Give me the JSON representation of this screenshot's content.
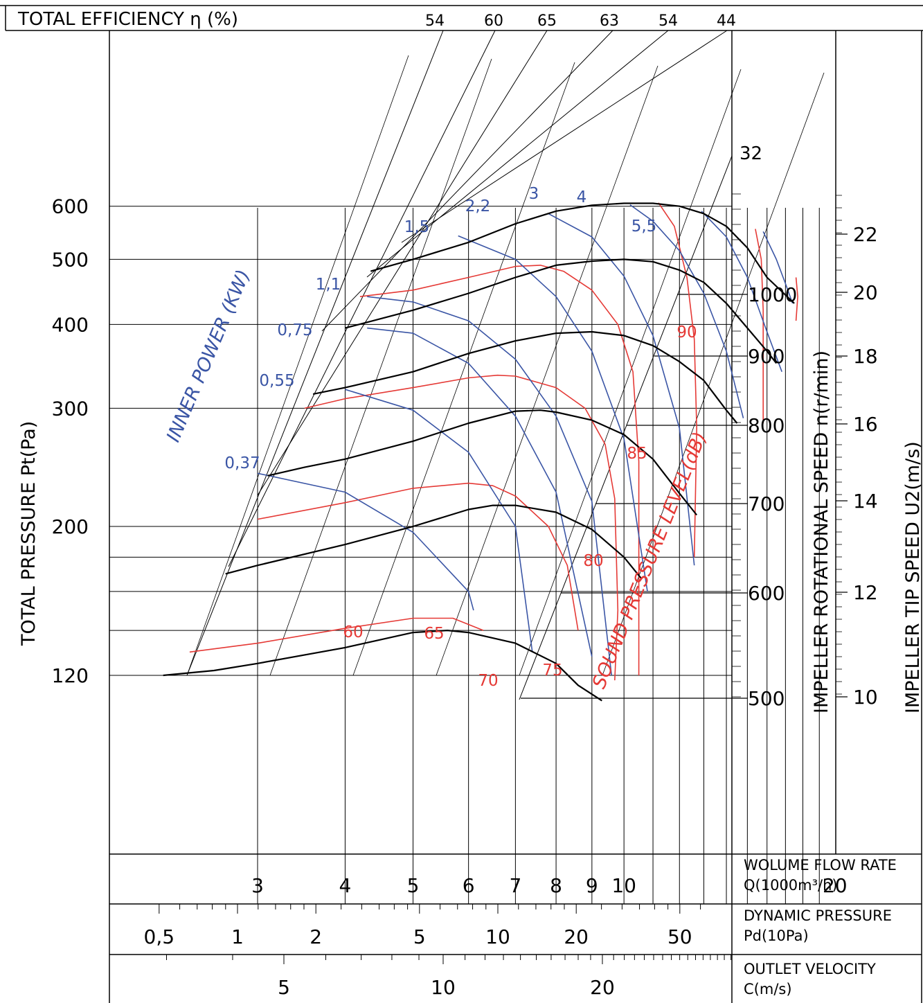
{
  "chart_data": {
    "type": "line",
    "title": "",
    "axes": {
      "total_efficiency_label": "TOTAL EFFICIENCY η (%)",
      "total_pressure_label": "TOTAL PRESSURE Pt(Pa)",
      "rotational_speed_label": "IMPELLER ROTATIONAL SPEED n(r/min)",
      "tip_speed_label": "IMPELLER TIP SPEED U2(m/s)",
      "inner_power_label": "INNER POWER (KW)",
      "sound_level_label": "SOUND PRESSURE LEVEL(dB)",
      "flow_label_1": "WOLUME FLOW RATE",
      "flow_label_2": "Q(1000m³/h)",
      "dyn_label_1": "DYNAMIC PRESSURE",
      "dyn_label_2": "Pd(10Pa)",
      "vel_label_1": "OUTLET VELOCITY",
      "vel_label_2": "C(m/s)"
    },
    "pressure_ticks": [
      {
        "label": "600",
        "value": 600
      },
      {
        "label": "500",
        "value": 500
      },
      {
        "label": "400",
        "value": 400
      },
      {
        "label": "300",
        "value": 300
      },
      {
        "label": "200",
        "value": 200
      },
      {
        "label": "120",
        "value": 120
      }
    ],
    "efficiency_ticks": [
      "54",
      "60",
      "65",
      "63",
      "54",
      "44"
    ],
    "rotational_speed_ticks": [
      "1000",
      "900",
      "800",
      "700",
      "600",
      "500"
    ],
    "top_diagonal_label": "32",
    "tip_speed_ticks": [
      "22",
      "20",
      "18",
      "16",
      "14",
      "12",
      "10"
    ],
    "flow_ticks": [
      {
        "label": "3",
        "value": 3
      },
      {
        "label": "4",
        "value": 4
      },
      {
        "label": "5",
        "value": 5
      },
      {
        "label": "6",
        "value": 6
      },
      {
        "label": "7",
        "value": 7
      },
      {
        "label": "8",
        "value": 8
      },
      {
        "label": "9",
        "value": 9
      },
      {
        "label": "10",
        "value": 10
      },
      {
        "label": "20",
        "value": 20
      }
    ],
    "dynamic_pressure_ticks": [
      {
        "label": "0,5",
        "value": 0.5
      },
      {
        "label": "1",
        "value": 1
      },
      {
        "label": "2",
        "value": 2
      },
      {
        "label": "5",
        "value": 5
      },
      {
        "label": "10",
        "value": 10
      },
      {
        "label": "20",
        "value": 20
      },
      {
        "label": "50",
        "value": 50
      }
    ],
    "velocity_ticks": [
      {
        "label": "5",
        "value": 5
      },
      {
        "label": "10",
        "value": 10
      },
      {
        "label": "20",
        "value": 20
      }
    ],
    "power_labels": [
      "0,37",
      "0,55",
      "0,75",
      "1,1",
      "1,5",
      "2,2",
      "3",
      "4",
      "5,5"
    ],
    "sound_labels": [
      "60",
      "65",
      "70",
      "75",
      "80",
      "85",
      "90"
    ],
    "speed_curves": [
      {
        "speed": 1000,
        "points": [
          [
            4.35,
            480
          ],
          [
            5,
            500
          ],
          [
            6,
            530
          ],
          [
            7,
            565
          ],
          [
            8,
            590
          ],
          [
            9,
            602
          ],
          [
            10,
            606
          ],
          [
            11,
            606
          ],
          [
            12,
            600
          ],
          [
            13,
            585
          ],
          [
            14,
            560
          ],
          [
            15,
            520
          ],
          [
            16,
            470
          ],
          [
            17.5,
            430
          ]
        ]
      },
      {
        "speed": 900,
        "points": [
          [
            4,
            395
          ],
          [
            5,
            420
          ],
          [
            6,
            445
          ],
          [
            7,
            470
          ],
          [
            8,
            490
          ],
          [
            9,
            497
          ],
          [
            10,
            500
          ],
          [
            11,
            496
          ],
          [
            12,
            482
          ],
          [
            13,
            462
          ],
          [
            14,
            430
          ],
          [
            15,
            395
          ],
          [
            16,
            365
          ],
          [
            16.5,
            350
          ]
        ]
      },
      {
        "speed": 800,
        "points": [
          [
            3.6,
            315
          ],
          [
            4,
            322
          ],
          [
            5,
            340
          ],
          [
            6,
            362
          ],
          [
            7,
            378
          ],
          [
            8,
            388
          ],
          [
            9,
            390
          ],
          [
            10,
            385
          ],
          [
            11,
            372
          ],
          [
            12,
            352
          ],
          [
            13,
            330
          ],
          [
            14,
            298
          ],
          [
            14.5,
            285
          ]
        ]
      },
      {
        "speed": 700,
        "points": [
          [
            3.1,
            238
          ],
          [
            3.5,
            245
          ],
          [
            4,
            252
          ],
          [
            5,
            268
          ],
          [
            6,
            285
          ],
          [
            7,
            297
          ],
          [
            7.6,
            298
          ],
          [
            8,
            296
          ],
          [
            9,
            288
          ],
          [
            10,
            274
          ],
          [
            11,
            252
          ],
          [
            12,
            224
          ],
          [
            12.7,
            208
          ]
        ]
      },
      {
        "speed": 600,
        "points": [
          [
            2.7,
            170
          ],
          [
            3,
            175
          ],
          [
            4,
            188
          ],
          [
            5,
            200
          ],
          [
            6,
            212
          ],
          [
            6.5,
            215
          ],
          [
            7,
            215
          ],
          [
            8,
            210
          ],
          [
            9,
            198
          ],
          [
            10,
            180
          ],
          [
            10.6,
            167
          ]
        ]
      },
      {
        "speed": 500,
        "points": [
          [
            2.2,
            120
          ],
          [
            2.6,
            122
          ],
          [
            3,
            125
          ],
          [
            4,
            132
          ],
          [
            5,
            139
          ],
          [
            5.6,
            140
          ],
          [
            6,
            139
          ],
          [
            7,
            134
          ],
          [
            8,
            125
          ],
          [
            8.6,
            116
          ],
          [
            9.3,
            110
          ]
        ]
      }
    ],
    "power_curves": [
      {
        "power": "0,37",
        "points": [
          [
            3,
            240
          ],
          [
            4,
            225
          ],
          [
            5,
            196
          ],
          [
            6,
            160
          ],
          [
            6.1,
            150
          ]
        ]
      },
      {
        "power": "0,55",
        "points": [
          [
            4,
            320
          ],
          [
            5,
            298
          ],
          [
            6,
            258
          ],
          [
            7,
            200
          ],
          [
            7.4,
            130
          ]
        ]
      },
      {
        "power": "0,75",
        "points": [
          [
            4.3,
            395
          ],
          [
            5,
            388
          ],
          [
            6,
            350
          ],
          [
            7,
            292
          ],
          [
            8,
            225
          ],
          [
            9,
            128
          ]
        ]
      },
      {
        "power": "1,1",
        "points": [
          [
            4.3,
            440
          ],
          [
            5,
            432
          ],
          [
            6,
            405
          ],
          [
            7,
            355
          ],
          [
            8,
            292
          ],
          [
            9,
            218
          ],
          [
            9.6,
            120
          ]
        ]
      },
      {
        "power": "1,5",
        "points": [
          [
            5.8,
            542
          ],
          [
            7,
            500
          ],
          [
            8,
            440
          ],
          [
            9,
            365
          ],
          [
            10,
            270
          ],
          [
            10.8,
            160
          ]
        ]
      },
      {
        "power": "2,2",
        "points": [
          [
            7.8,
            585
          ],
          [
            9,
            540
          ],
          [
            10,
            472
          ],
          [
            11,
            385
          ],
          [
            12,
            280
          ],
          [
            12.6,
            175
          ]
        ]
      },
      {
        "power": "3",
        "points": [
          [
            10.2,
            603
          ],
          [
            11,
            570
          ],
          [
            12,
            515
          ],
          [
            13,
            445
          ],
          [
            14,
            365
          ],
          [
            14.8,
            290
          ]
        ]
      },
      {
        "power": "4",
        "points": [
          [
            12.9,
            590
          ],
          [
            14,
            540
          ],
          [
            15,
            470
          ],
          [
            16,
            390
          ],
          [
            16.8,
            340
          ]
        ]
      },
      {
        "power": "5,5",
        "points": [
          [
            15.8,
            550
          ],
          [
            16.5,
            500
          ],
          [
            17,
            460
          ],
          [
            17.4,
            430
          ]
        ]
      }
    ],
    "sound_curves": [
      {
        "level": "60",
        "points": [
          [
            2.4,
            130
          ],
          [
            3,
            134
          ],
          [
            4,
            141
          ],
          [
            5,
            146
          ],
          [
            5.7,
            146
          ],
          [
            6.3,
            140
          ]
        ]
      },
      {
        "level": "65",
        "points": [
          [
            3,
            205
          ],
          [
            4,
            217
          ],
          [
            5,
            228
          ],
          [
            6,
            232
          ],
          [
            6.5,
            230
          ],
          [
            7,
            222
          ],
          [
            7.8,
            200
          ],
          [
            8.3,
            175
          ],
          [
            8.6,
            140
          ]
        ]
      },
      {
        "level": "70",
        "points": [
          [
            3.5,
            300
          ],
          [
            4,
            310
          ],
          [
            5,
            322
          ],
          [
            6,
            333
          ],
          [
            6.6,
            336
          ],
          [
            7,
            335
          ],
          [
            8,
            322
          ],
          [
            8.8,
            300
          ],
          [
            9.4,
            265
          ],
          [
            9.7,
            220
          ],
          [
            9.8,
            150
          ],
          [
            9.7,
            118
          ]
        ]
      },
      {
        "level": "75",
        "points": [
          [
            4.2,
            440
          ],
          [
            5,
            450
          ],
          [
            6,
            470
          ],
          [
            7,
            488
          ],
          [
            7.6,
            490
          ],
          [
            8.2,
            480
          ],
          [
            9,
            450
          ],
          [
            9.8,
            400
          ],
          [
            10.3,
            340
          ],
          [
            10.5,
            250
          ],
          [
            10.5,
            120
          ]
        ]
      },
      {
        "level": "80",
        "points": [
          [
            11.2,
            607
          ],
          [
            11.8,
            560
          ],
          [
            12.3,
            470
          ],
          [
            12.6,
            380
          ],
          [
            12.7,
            280
          ],
          [
            12.6,
            180
          ]
        ]
      },
      {
        "level": "85",
        "points": [
          [
            15.4,
            555
          ],
          [
            15.7,
            500
          ],
          [
            15.8,
            420
          ],
          [
            15.8,
            285
          ]
        ]
      },
      {
        "level": "90",
        "points": [
          [
            17.6,
            470
          ],
          [
            17.7,
            440
          ],
          [
            17.6,
            405
          ]
        ]
      }
    ]
  }
}
